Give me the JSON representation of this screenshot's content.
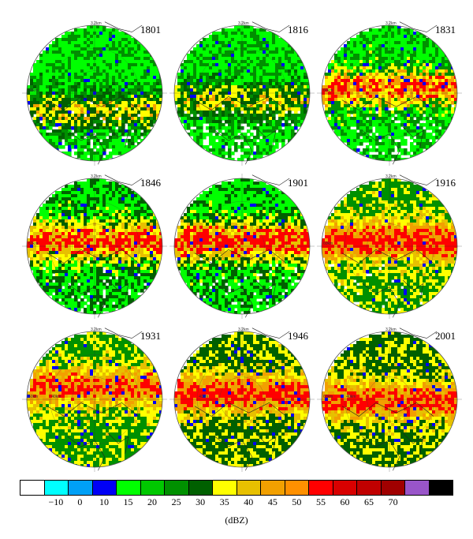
{
  "chart_data": {
    "type": "heatmap",
    "panels": [
      {
        "time": "1801",
        "range_label": "60km",
        "range_top": "3.2km",
        "range_mid": "",
        "col": 0,
        "row": 0,
        "dominant_dbz": [
          20,
          30,
          35,
          40,
          50
        ],
        "coverage": 0.85,
        "core_band": 0.62,
        "core_strength": 0.55
      },
      {
        "time": "1816",
        "range_label": "",
        "range_top": "3.2km",
        "range_mid": "",
        "col": 1,
        "row": 0,
        "dominant_dbz": [
          20,
          30,
          35,
          40,
          50
        ],
        "coverage": 0.8,
        "core_band": 0.55,
        "core_strength": 0.5
      },
      {
        "time": "1831",
        "range_label": "60km",
        "range_top": "3.2km",
        "range_mid": "",
        "col": 2,
        "row": 0,
        "dominant_dbz": [
          20,
          30,
          40,
          50,
          55
        ],
        "coverage": 0.85,
        "core_band": 0.45,
        "core_strength": 0.65
      },
      {
        "time": "1846",
        "range_label": "60km",
        "range_top": "3.2km",
        "range_mid": "",
        "col": 0,
        "row": 1,
        "dominant_dbz": [
          20,
          35,
          40,
          45,
          55
        ],
        "coverage": 0.9,
        "core_band": 0.45,
        "core_strength": 0.75
      },
      {
        "time": "1901",
        "range_label": "",
        "range_top": "",
        "range_mid": "",
        "col": 1,
        "row": 1,
        "dominant_dbz": [
          20,
          35,
          40,
          45,
          55
        ],
        "coverage": 0.9,
        "core_band": 0.45,
        "core_strength": 0.8
      },
      {
        "time": "1916",
        "range_label": "60km",
        "range_top": "3.2km",
        "range_mid": "",
        "col": 2,
        "row": 1,
        "dominant_dbz": [
          30,
          40,
          45,
          50,
          55
        ],
        "coverage": 0.95,
        "core_band": 0.45,
        "core_strength": 0.8
      },
      {
        "time": "1931",
        "range_label": "60km",
        "range_top": "3.2km",
        "range_mid": "40km",
        "col": 0,
        "row": 2,
        "dominant_dbz": [
          30,
          40,
          45,
          50,
          55
        ],
        "coverage": 1.0,
        "core_band": 0.4,
        "core_strength": 0.7
      },
      {
        "time": "1946",
        "range_label": "",
        "range_top": "3.2km",
        "range_mid": "40km",
        "col": 1,
        "row": 2,
        "dominant_dbz": [
          35,
          40,
          45,
          50,
          55
        ],
        "coverage": 1.0,
        "core_band": 0.45,
        "core_strength": 0.8
      },
      {
        "time": "2001",
        "range_label": "60km",
        "range_top": "3.2km",
        "range_mid": "40km",
        "col": 2,
        "row": 2,
        "dominant_dbz": [
          35,
          40,
          45,
          50,
          55
        ],
        "coverage": 1.0,
        "core_band": 0.5,
        "core_strength": 0.75
      }
    ],
    "colorbar": {
      "colors": [
        "#ffffff",
        "#00ffff",
        "#00a0f6",
        "#0000f6",
        "#00ff00",
        "#00c800",
        "#009000",
        "#006000",
        "#ffff00",
        "#e7c000",
        "#f2a000",
        "#ff9000",
        "#ff0000",
        "#d80000",
        "#c00000",
        "#a00000",
        "#9955c9",
        "#000000"
      ],
      "tick_labels": [
        "−10",
        "0",
        "10",
        "15",
        "20",
        "25",
        "30",
        "35",
        "40",
        "45",
        "50",
        "55",
        "60",
        "65",
        "70"
      ],
      "unit": "(dBZ)"
    }
  }
}
